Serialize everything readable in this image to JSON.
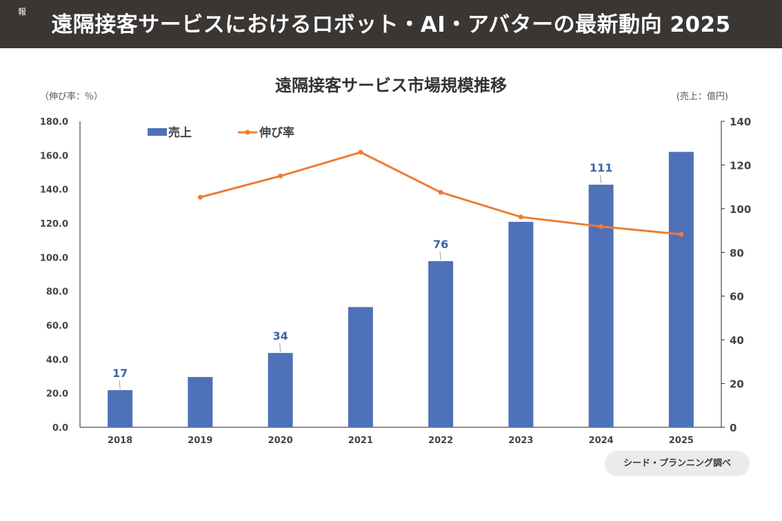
{
  "header": {
    "mark": "報",
    "title": "遠隔接客サービスにおけるロボット・AI・アバターの最新動向 2025"
  },
  "source": "シード・プランニング調べ",
  "colors": {
    "bar": "#4f71b7",
    "line": "#ed7d31",
    "header_bg": "#3a3634",
    "data_label": "#3d63a8"
  },
  "chart_data": {
    "type": "bar",
    "title": "遠隔接客サービス市場規模推移",
    "categories": [
      "2018",
      "2019",
      "2020",
      "2021",
      "2022",
      "2023",
      "2024",
      "2025"
    ],
    "series": [
      {
        "name": "売上",
        "type": "bar",
        "axis": "right",
        "values": [
          17,
          23,
          34,
          55,
          76,
          94,
          111,
          126
        ]
      },
      {
        "name": "伸び率",
        "type": "line",
        "axis": "left",
        "values": [
          null,
          135.3,
          147.8,
          161.8,
          138.2,
          123.7,
          118.1,
          113.5
        ]
      }
    ],
    "data_labels": [
      {
        "category": "2018",
        "text": "17"
      },
      {
        "category": "2020",
        "text": "34"
      },
      {
        "category": "2022",
        "text": "76"
      },
      {
        "category": "2024",
        "text": "111"
      }
    ],
    "left_axis": {
      "unit": "（伸び率：％）",
      "min": 0,
      "max": 180,
      "step": 20,
      "ticks": [
        "0.0",
        "20.0",
        "40.0",
        "60.0",
        "80.0",
        "100.0",
        "120.0",
        "140.0",
        "160.0",
        "180.0"
      ]
    },
    "right_axis": {
      "unit": "(売上：億円)",
      "min": 0,
      "max": 140,
      "step": 20,
      "ticks": [
        "0",
        "20",
        "40",
        "60",
        "80",
        "100",
        "120",
        "140"
      ]
    },
    "grid": false,
    "legend": "top-left"
  }
}
